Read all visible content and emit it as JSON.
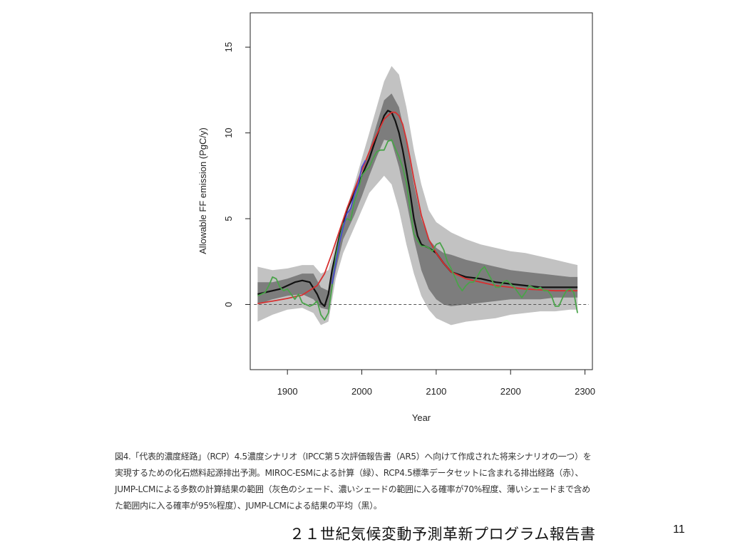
{
  "chart_data": {
    "type": "line",
    "xlabel": "Year",
    "ylabel": "Allowable FF emission (PgC/y)",
    "xlim": [
      1850,
      2310
    ],
    "ylim": [
      -3.8,
      17
    ],
    "xticks": [
      1900,
      2000,
      2100,
      2200,
      2300
    ],
    "yticks": [
      0,
      5,
      10,
      15
    ],
    "zero_line": 0,
    "grid": false,
    "bands": [
      {
        "name": "light-shade",
        "color": "#c2c2c2",
        "x": [
          1860,
          1880,
          1900,
          1920,
          1935,
          1945,
          1955,
          1965,
          1975,
          1990,
          2000,
          2010,
          2020,
          2030,
          2040,
          2050,
          2060,
          2070,
          2080,
          2090,
          2100,
          2110,
          2120,
          2140,
          2160,
          2180,
          2200,
          2220,
          2240,
          2260,
          2280,
          2290
        ],
        "upper": [
          2.2,
          2.0,
          2.1,
          2.3,
          2.3,
          1.8,
          2.0,
          3.5,
          5.0,
          7.0,
          8.5,
          10.0,
          11.5,
          13.0,
          13.9,
          13.4,
          11.5,
          9.0,
          7.0,
          5.5,
          4.8,
          4.5,
          4.2,
          3.8,
          3.5,
          3.3,
          3.1,
          3.0,
          2.8,
          2.6,
          2.4,
          2.3
        ],
        "lower": [
          -1.0,
          -0.6,
          -0.3,
          -0.2,
          -0.5,
          -1.2,
          -1.0,
          1.5,
          3.0,
          4.5,
          5.5,
          6.5,
          7.0,
          7.5,
          7.0,
          5.5,
          3.5,
          1.8,
          0.5,
          -0.3,
          -0.8,
          -1.0,
          -1.2,
          -1.0,
          -0.9,
          -0.8,
          -0.6,
          -0.5,
          -0.4,
          -0.4,
          -0.3,
          -0.3
        ]
      },
      {
        "name": "dark-shade",
        "color": "#7d7d7d",
        "x": [
          1860,
          1880,
          1900,
          1920,
          1935,
          1945,
          1955,
          1965,
          1975,
          1990,
          2000,
          2010,
          2020,
          2030,
          2040,
          2050,
          2060,
          2070,
          2080,
          2090,
          2100,
          2110,
          2120,
          2140,
          2160,
          2180,
          2200,
          2220,
          2240,
          2260,
          2280,
          2290
        ],
        "upper": [
          1.3,
          1.3,
          1.5,
          1.8,
          1.8,
          1.0,
          0.8,
          2.8,
          4.5,
          6.3,
          7.6,
          9.0,
          10.5,
          11.9,
          12.3,
          11.5,
          9.5,
          7.0,
          5.0,
          3.8,
          3.3,
          3.0,
          2.9,
          2.6,
          2.4,
          2.2,
          2.0,
          1.9,
          1.8,
          1.7,
          1.6,
          1.6
        ],
        "lower": [
          0.0,
          0.3,
          0.5,
          0.6,
          0.3,
          -0.2,
          -0.3,
          2.0,
          3.8,
          5.2,
          6.3,
          7.5,
          8.6,
          9.6,
          9.5,
          8.0,
          6.0,
          3.8,
          2.0,
          0.9,
          0.3,
          0.0,
          -0.1,
          0.0,
          0.1,
          0.2,
          0.3,
          0.3,
          0.3,
          0.4,
          0.4,
          0.4
        ]
      }
    ],
    "series": [
      {
        "color": "#111111",
        "x": [
          1860,
          1870,
          1880,
          1890,
          1900,
          1910,
          1920,
          1930,
          1940,
          1945,
          1950,
          1955,
          1960,
          1965,
          1970,
          1980,
          1990,
          2000,
          2010,
          2020,
          2030,
          2035,
          2040,
          2045,
          2050,
          2055,
          2060,
          2065,
          2070,
          2075,
          2080,
          2090,
          2100,
          2110,
          2120,
          2140,
          2160,
          2180,
          2200,
          2220,
          2240,
          2260,
          2280,
          2290
        ],
        "y": [
          0.6,
          0.7,
          0.8,
          0.9,
          1.1,
          1.3,
          1.4,
          1.3,
          0.6,
          0.1,
          -0.1,
          0.6,
          2.0,
          3.0,
          4.0,
          5.5,
          6.5,
          7.5,
          8.5,
          9.8,
          11.0,
          11.3,
          11.2,
          10.7,
          10.0,
          9.0,
          7.8,
          6.5,
          5.0,
          4.0,
          3.5,
          3.3,
          3.0,
          2.4,
          1.9,
          1.6,
          1.5,
          1.3,
          1.2,
          1.1,
          1.0,
          1.0,
          1.0,
          1.0
        ]
      },
      {
        "color": "#d73030",
        "x": [
          1860,
          1880,
          1900,
          1920,
          1940,
          1950,
          1960,
          1970,
          1980,
          1990,
          2000,
          2010,
          2020,
          2030,
          2040,
          2045,
          2050,
          2055,
          2060,
          2065,
          2070,
          2080,
          2090,
          2100,
          2110,
          2120,
          2140,
          2160,
          2180,
          2200,
          2220,
          2240,
          2260,
          2280,
          2290
        ],
        "y": [
          0.05,
          0.2,
          0.35,
          0.55,
          1.1,
          1.8,
          3.0,
          4.3,
          5.6,
          6.7,
          7.8,
          8.9,
          9.9,
          10.8,
          11.2,
          11.2,
          11.0,
          10.5,
          9.6,
          8.5,
          7.3,
          5.2,
          3.8,
          3.0,
          2.4,
          1.9,
          1.5,
          1.3,
          1.1,
          1.0,
          0.9,
          0.85,
          0.8,
          0.8,
          0.8
        ]
      },
      {
        "color": "#4aa34a",
        "x": [
          1860,
          1865,
          1870,
          1875,
          1880,
          1885,
          1890,
          1895,
          1900,
          1905,
          1910,
          1915,
          1920,
          1925,
          1930,
          1935,
          1940,
          1945,
          1950,
          1955,
          1960,
          1965,
          1970,
          1975,
          1980,
          1985,
          1990,
          1995,
          2000,
          2005,
          2010,
          2015,
          2020,
          2025,
          2030,
          2035,
          2040,
          2045,
          2050,
          2055,
          2060,
          2065,
          2070,
          2075,
          2080,
          2085,
          2090,
          2095,
          2100,
          2105,
          2110,
          2115,
          2120,
          2125,
          2130,
          2135,
          2140,
          2145,
          2150,
          2155,
          2160,
          2165,
          2170,
          2175,
          2180,
          2185,
          2190,
          2195,
          2200,
          2205,
          2210,
          2215,
          2220,
          2225,
          2230,
          2235,
          2240,
          2245,
          2250,
          2255,
          2260,
          2265,
          2270,
          2275,
          2280,
          2285,
          2290
        ],
        "y": [
          0.5,
          0.6,
          0.7,
          1.1,
          1.6,
          1.5,
          1.0,
          0.8,
          0.9,
          0.6,
          0.3,
          0.6,
          0.1,
          0.0,
          -0.1,
          0.0,
          0.2,
          -0.6,
          -0.9,
          -0.5,
          1.0,
          2.8,
          3.8,
          4.7,
          5.0,
          4.9,
          6.0,
          6.6,
          7.5,
          7.8,
          8.0,
          8.5,
          8.9,
          9.0,
          9.0,
          9.5,
          9.6,
          9.1,
          8.6,
          8.0,
          7.1,
          5.6,
          4.1,
          3.7,
          3.4,
          3.4,
          3.3,
          3.1,
          3.5,
          3.6,
          3.2,
          2.5,
          2.1,
          1.6,
          1.1,
          0.8,
          1.1,
          1.3,
          1.3,
          1.6,
          2.0,
          2.2,
          1.8,
          1.4,
          1.0,
          1.0,
          1.3,
          1.4,
          1.2,
          1.0,
          0.7,
          0.4,
          0.7,
          1.1,
          1.0,
          0.9,
          1.0,
          0.8,
          0.8,
          0.5,
          -0.1,
          -0.1,
          0.4,
          0.8,
          0.9,
          0.7,
          -0.5
        ]
      },
      {
        "color": "#4a4ad0",
        "x": [
          1960,
          1965,
          1970,
          1975,
          1980,
          1985,
          1990,
          1995,
          2000,
          2005
        ],
        "y": [
          1.2,
          2.4,
          3.6,
          4.5,
          5.3,
          5.6,
          6.4,
          7.0,
          8.0,
          8.4
        ]
      }
    ]
  },
  "caption": {
    "lines": [
      "図4.「代表的濃度経路」（RCP）4.5濃度シナリオ（IPCC第５次評価報告書（AR5）へ向けて作成された将来シナリオの一つ）を",
      "実現するための化石燃料起源排出予測。MIROC-ESMによる計算（緑）、RCP4.5標準データセットに含まれる排出経路（赤）、",
      "JUMP-LCMによる多数の計算結果の範囲（灰色のシェード、濃いシェードの範囲に入る確率が70%程度、薄いシェードまで含め",
      "た範囲内に入る確率が95%程度）、JUMP-LCMによる結果の平均（黒）。"
    ]
  },
  "footer": {
    "title": "２１世紀気候変動予測革新プログラム報告書",
    "page_number": "11"
  }
}
